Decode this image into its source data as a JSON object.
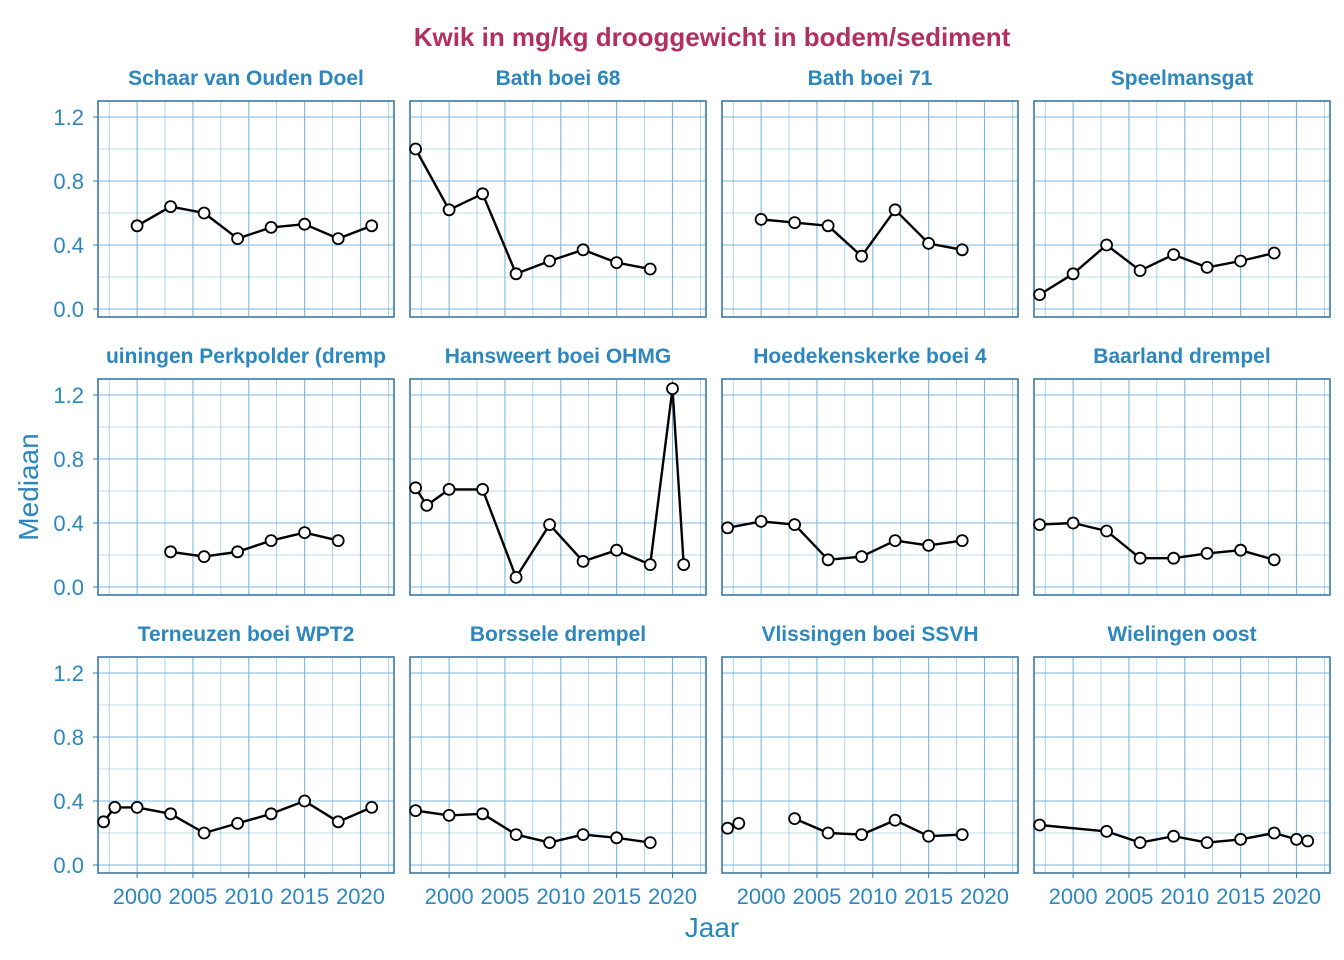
{
  "chart_data": {
    "type": "line",
    "title": "Kwik in mg/kg drooggewicht in bodem/sediment",
    "xlabel": "Jaar",
    "ylabel": "Mediaan",
    "xlim": [
      1996.5,
      2023.0
    ],
    "ylim": [
      -0.05,
      1.3
    ],
    "xticks": [
      2000,
      2005,
      2010,
      2015,
      2020
    ],
    "xtick_labels": [
      "2000",
      "2005",
      "2010",
      "2015",
      "2020"
    ],
    "yticks": [
      0.0,
      0.4,
      0.8,
      1.2
    ],
    "ytick_labels": [
      "0.0",
      "0.4",
      "0.8",
      "1.2"
    ],
    "grid": true,
    "colors": {
      "title": "#b2305f",
      "axis_text": "#2b87be",
      "panel_border": "#3a78a8",
      "grid": "#7ab7dc",
      "line": "#000000",
      "point_fill": "#ffffff"
    },
    "panels": [
      {
        "name": "Schaar van Ouden Doel",
        "segments": [
          [
            [
              2000,
              0.52
            ],
            [
              2003,
              0.64
            ],
            [
              2006,
              0.6
            ],
            [
              2009,
              0.44
            ],
            [
              2012,
              0.51
            ],
            [
              2015,
              0.53
            ],
            [
              2018,
              0.44
            ],
            [
              2021,
              0.52
            ]
          ]
        ]
      },
      {
        "name": "Bath boei 68",
        "segments": [
          [
            [
              1997,
              1.0
            ],
            [
              2000,
              0.62
            ],
            [
              2003,
              0.72
            ],
            [
              2006,
              0.22
            ],
            [
              2009,
              0.3
            ],
            [
              2012,
              0.37
            ],
            [
              2015,
              0.29
            ],
            [
              2018,
              0.25
            ]
          ]
        ]
      },
      {
        "name": "Bath boei 71",
        "segments": [
          [
            [
              2000,
              0.56
            ],
            [
              2003,
              0.54
            ],
            [
              2006,
              0.52
            ],
            [
              2009,
              0.33
            ],
            [
              2012,
              0.62
            ],
            [
              2015,
              0.41
            ],
            [
              2018,
              0.37
            ]
          ]
        ]
      },
      {
        "name": "Speelmansgat",
        "segments": [
          [
            [
              1997,
              0.09
            ],
            [
              2000,
              0.22
            ],
            [
              2003,
              0.4
            ],
            [
              2006,
              0.24
            ],
            [
              2009,
              0.34
            ],
            [
              2012,
              0.26
            ],
            [
              2015,
              0.3
            ],
            [
              2018,
              0.35
            ]
          ]
        ]
      },
      {
        "name": "Walsoorden Perkpolder (drempel)",
        "display_name": "uiningen Perkpolder (dremp",
        "segments": [
          [
            [
              2003,
              0.22
            ],
            [
              2006,
              0.19
            ],
            [
              2009,
              0.22
            ],
            [
              2012,
              0.29
            ],
            [
              2015,
              0.34
            ],
            [
              2018,
              0.29
            ]
          ]
        ]
      },
      {
        "name": "Hansweert boei OHMG",
        "segments": [
          [
            [
              1997,
              0.62
            ],
            [
              1998,
              0.51
            ],
            [
              2000,
              0.61
            ],
            [
              2003,
              0.61
            ],
            [
              2006,
              0.06
            ],
            [
              2009,
              0.39
            ],
            [
              2012,
              0.16
            ],
            [
              2015,
              0.23
            ],
            [
              2018,
              0.14
            ],
            [
              2020,
              1.24
            ],
            [
              2021,
              0.14
            ]
          ]
        ]
      },
      {
        "name": "Hoedekenskerke boei 4",
        "segments": [
          [
            [
              1997,
              0.37
            ],
            [
              2000,
              0.41
            ],
            [
              2003,
              0.39
            ],
            [
              2006,
              0.17
            ],
            [
              2009,
              0.19
            ],
            [
              2012,
              0.29
            ],
            [
              2015,
              0.26
            ],
            [
              2018,
              0.29
            ]
          ]
        ]
      },
      {
        "name": "Baarland drempel",
        "segments": [
          [
            [
              1997,
              0.39
            ],
            [
              2000,
              0.4
            ],
            [
              2003,
              0.35
            ],
            [
              2006,
              0.18
            ],
            [
              2009,
              0.18
            ],
            [
              2012,
              0.21
            ],
            [
              2015,
              0.23
            ],
            [
              2018,
              0.17
            ]
          ]
        ]
      },
      {
        "name": "Terneuzen boei WPT2",
        "segments": [
          [
            [
              1997,
              0.27
            ],
            [
              1998,
              0.36
            ],
            [
              2000,
              0.36
            ],
            [
              2003,
              0.32
            ],
            [
              2006,
              0.2
            ],
            [
              2009,
              0.26
            ],
            [
              2012,
              0.32
            ],
            [
              2015,
              0.4
            ],
            [
              2018,
              0.27
            ],
            [
              2021,
              0.36
            ]
          ]
        ]
      },
      {
        "name": "Borssele drempel",
        "segments": [
          [
            [
              1997,
              0.34
            ],
            [
              2000,
              0.31
            ],
            [
              2003,
              0.32
            ],
            [
              2006,
              0.19
            ],
            [
              2009,
              0.14
            ],
            [
              2012,
              0.19
            ],
            [
              2015,
              0.17
            ],
            [
              2018,
              0.14
            ]
          ]
        ]
      },
      {
        "name": "Vlissingen boei SSVH",
        "segments": [
          [
            [
              1997,
              0.23
            ],
            [
              1998,
              0.26
            ]
          ],
          [
            [
              2003,
              0.29
            ],
            [
              2006,
              0.2
            ],
            [
              2009,
              0.19
            ],
            [
              2012,
              0.28
            ],
            [
              2015,
              0.18
            ],
            [
              2018,
              0.19
            ]
          ]
        ]
      },
      {
        "name": "Wielingen oost",
        "segments": [
          [
            [
              1997,
              0.25
            ],
            [
              2003,
              0.21
            ],
            [
              2006,
              0.14
            ],
            [
              2009,
              0.18
            ],
            [
              2012,
              0.14
            ],
            [
              2015,
              0.16
            ],
            [
              2018,
              0.2
            ],
            [
              2020,
              0.16
            ],
            [
              2021,
              0.15
            ]
          ]
        ]
      }
    ]
  }
}
